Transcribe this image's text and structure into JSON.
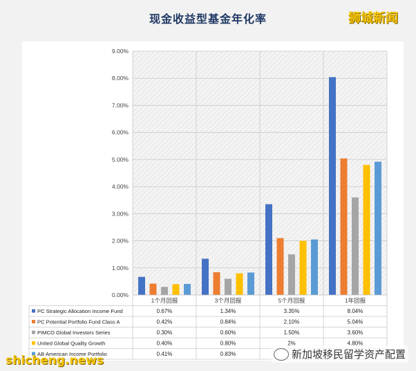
{
  "title": "现金收益型基金年化率",
  "logo_text": "狮城新闻",
  "watermark_left": "shicheng.news",
  "watermark_right": "新加坡移民留学资产配置",
  "chart_data": {
    "type": "bar",
    "categories": [
      "1个月回报",
      "3个月回报",
      "5个月回报",
      "1年回报"
    ],
    "ylim": [
      0,
      9
    ],
    "y_ticks": [
      "0.00%",
      "1.00%",
      "2.00%",
      "3.00%",
      "4.00%",
      "5.00%",
      "6.00%",
      "7.00%",
      "8.00%",
      "9.00%"
    ],
    "grid": true,
    "legend": "data-table-below",
    "series": [
      {
        "name": "PC Strategic Allocation Income Fund",
        "color": "#4472c4",
        "values": [
          0.67,
          1.34,
          3.35,
          8.04
        ],
        "labels": [
          "0.67%",
          "1.34%",
          "3.35%",
          "8.04%"
        ]
      },
      {
        "name": "PC Potential Portfolio Fund Class A",
        "color": "#ed7d31",
        "values": [
          0.42,
          0.84,
          2.1,
          5.04
        ],
        "labels": [
          "0.42%",
          "0.84%",
          "2.10%",
          "5.04%"
        ]
      },
      {
        "name": "PIMCO Global Investors Series",
        "color": "#a5a5a5",
        "values": [
          0.3,
          0.6,
          1.5,
          3.6
        ],
        "labels": [
          "0.30%",
          "0.60%",
          "1.50%",
          "3.60%"
        ]
      },
      {
        "name": "United Global Quality Growth",
        "color": "#ffc000",
        "values": [
          0.4,
          0.8,
          2.0,
          4.8
        ],
        "labels": [
          "0.40%",
          "0.80%",
          "2%",
          "4.80%"
        ]
      },
      {
        "name": "AB American Income Portfolio",
        "color": "#5b9bd5",
        "values": [
          0.41,
          0.83,
          2.05,
          4.92
        ],
        "labels": [
          "0.41%",
          "0.83%",
          "",
          ""
        ]
      }
    ]
  }
}
